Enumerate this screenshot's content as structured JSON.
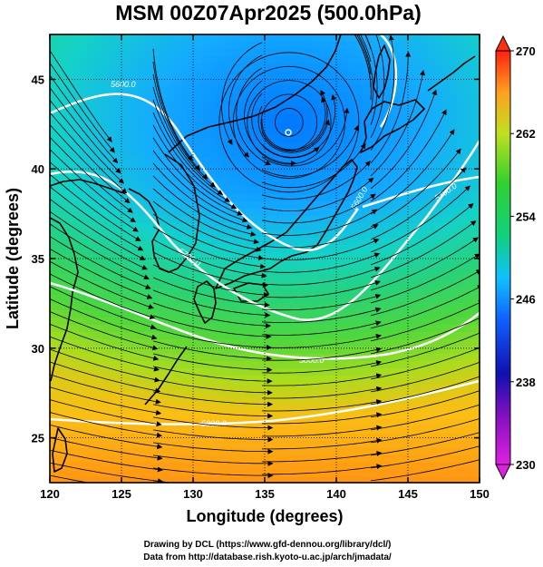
{
  "title": "MSM 00Z07Apr2025 (500.0hPa)",
  "xlabel": "Longitude (degrees)",
  "ylabel": "Latitude  (degrees)",
  "x_ticks": [
    "120",
    "125",
    "130",
    "135",
    "140",
    "145",
    "150"
  ],
  "y_ticks": [
    "25",
    "30",
    "35",
    "40",
    "45"
  ],
  "colorbar": {
    "ticks": [
      "230",
      "238",
      "246",
      "254",
      "262",
      "270"
    ],
    "min": 230,
    "max": 270
  },
  "contour_labels": [
    "5600.0",
    "5700.0",
    "5800.0",
    "5800.0",
    "5700.0",
    "5600.0"
  ],
  "credits": {
    "line1": "Drawing by DCL (https://www.gfd-dennou.org/library/dcl/)",
    "line2": "Data from http://database.rish.kyoto-u.ac.jp/arch/jmadata/"
  },
  "chart_data": {
    "type": "heatmap",
    "title": "MSM 00Z07Apr2025 (500.0hPa)",
    "xlabel": "Longitude (degrees)",
    "ylabel": "Latitude  (degrees)",
    "xlim": [
      120,
      150
    ],
    "ylim": [
      22.5,
      47.5
    ],
    "colorbar_range": [
      230,
      270
    ],
    "colorbar_ticks": [
      230,
      238,
      246,
      254,
      262,
      270
    ],
    "grid": true,
    "low_center": {
      "lon": 136.7,
      "lat": 42.6
    }
  }
}
